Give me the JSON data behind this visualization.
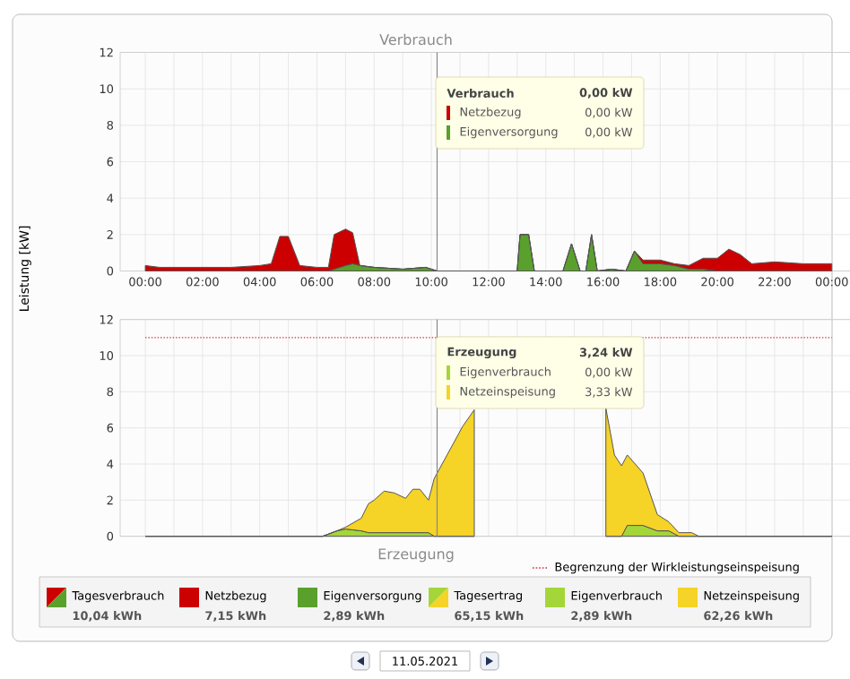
{
  "chart_data": [
    {
      "type": "area",
      "title": "Verbrauch",
      "ylabel": "Leistung [kW]",
      "stacked": true,
      "grid": true,
      "x": [
        0,
        0.5,
        1,
        2,
        3,
        4,
        4.4,
        4.7,
        5.0,
        5.4,
        6.0,
        6.4,
        6.6,
        7.0,
        7.25,
        7.5,
        8,
        9,
        9.8,
        10.2,
        13.0,
        13.1,
        13.4,
        13.6,
        14.6,
        14.9,
        15.2,
        15.4,
        15.6,
        15.8,
        16.3,
        16.8,
        17.1,
        17.4,
        18,
        18.5,
        19,
        19.5,
        20,
        20.4,
        20.8,
        21.2,
        22,
        23,
        24
      ],
      "series": [
        {
          "name": "Eigenversorgung",
          "color": "#5aa02c",
          "values": [
            0,
            0,
            0,
            0,
            0,
            0,
            0,
            0,
            0,
            0,
            0,
            0,
            0.1,
            0.3,
            0.4,
            0.3,
            0.2,
            0.1,
            0.2,
            0,
            0,
            2.0,
            2.0,
            0,
            0,
            1.5,
            0,
            0,
            2.0,
            0,
            0.1,
            0,
            1.1,
            0.4,
            0.4,
            0.3,
            0.1,
            0.1,
            0,
            0,
            0,
            0,
            0,
            0,
            0
          ]
        },
        {
          "name": "Netzbezug",
          "color": "#cc0000",
          "values": [
            0.3,
            0.2,
            0.2,
            0.2,
            0.2,
            0.3,
            0.4,
            1.9,
            1.9,
            0.3,
            0.2,
            0.2,
            1.9,
            2.0,
            1.7,
            0,
            0,
            0,
            0,
            0,
            0,
            0,
            0,
            0,
            0,
            0,
            0,
            0,
            0,
            0,
            0,
            0,
            0,
            0.2,
            0.2,
            0.1,
            0.2,
            0.6,
            0.7,
            1.2,
            0.9,
            0.4,
            0.5,
            0.4,
            0.4
          ]
        }
      ],
      "xlim": [
        -0.88,
        24.76
      ],
      "ylim": [
        0,
        12
      ],
      "xticks": [
        {
          "value": 0,
          "label": "00:00"
        },
        {
          "value": 2,
          "label": "02:00"
        },
        {
          "value": 4,
          "label": "04:00"
        },
        {
          "value": 6,
          "label": "06:00"
        },
        {
          "value": 8,
          "label": "08:00"
        },
        {
          "value": 10,
          "label": "10:00"
        },
        {
          "value": 12,
          "label": "12:00"
        },
        {
          "value": 14,
          "label": "14:00"
        },
        {
          "value": 16,
          "label": "16:00"
        },
        {
          "value": 18,
          "label": "18:00"
        },
        {
          "value": 20,
          "label": "20:00"
        },
        {
          "value": 22,
          "label": "22:00"
        },
        {
          "value": 24,
          "label": "00:00"
        }
      ],
      "yticks": [
        0,
        2,
        4,
        6,
        8,
        10,
        12
      ],
      "ref_lines": [
        {
          "axis": "x",
          "value": 10.2,
          "color": "#888888"
        }
      ],
      "legend": "top",
      "annotations": [
        "Verbrauch",
        "0,00 kW",
        "0,00 kW",
        "0,00 kW"
      ]
    },
    {
      "type": "area",
      "title": "Erzeugung",
      "stacked": true,
      "grid": true,
      "tick_labels": "y",
      "x": [
        0,
        2,
        4,
        6.2,
        6.7,
        7.0,
        7.55,
        7.8,
        8.0,
        8.35,
        8.7,
        9.1,
        9.35,
        9.6,
        9.9,
        10.1,
        11.1,
        11.5,
        12,
        15.8,
        16.1,
        16.4,
        16.65,
        16.85,
        17.4,
        17.9,
        18.3,
        18.65,
        19.1,
        19.35,
        20,
        22,
        24
      ],
      "series": [
        {
          "name": "Eigenverbrauch",
          "color": "#a4d63a",
          "values": [
            0,
            0,
            0,
            0,
            0.3,
            0.4,
            0.3,
            0.2,
            0.2,
            0.2,
            0.2,
            0.2,
            0.2,
            0.2,
            0.2,
            0,
            0,
            0,
            null,
            null,
            0,
            0,
            0,
            0.6,
            0.6,
            0.3,
            0.3,
            0,
            0,
            0,
            0,
            0,
            0
          ]
        },
        {
          "name": "Netzeinspeisung",
          "color": "#f5d327",
          "values": [
            0,
            0,
            0,
            0,
            0,
            0.1,
            0.7,
            1.6,
            1.8,
            2.3,
            2.2,
            1.9,
            2.4,
            2.4,
            1.8,
            3.2,
            6.1,
            7.0,
            null,
            null,
            7.1,
            4.5,
            3.9,
            3.9,
            2.9,
            0.9,
            0.5,
            0.2,
            0.2,
            0,
            0,
            0,
            0
          ]
        }
      ],
      "xlim": [
        -0.88,
        24.76
      ],
      "ylim": [
        0,
        12
      ],
      "xticks": [
        {
          "value": 0,
          "label": null
        },
        {
          "value": 2,
          "label": null
        },
        {
          "value": 4,
          "label": null
        },
        {
          "value": 6,
          "label": null
        },
        {
          "value": 8,
          "label": null
        },
        {
          "value": 10,
          "label": null
        },
        {
          "value": 12,
          "label": null
        },
        {
          "value": 14,
          "label": null
        },
        {
          "value": 16,
          "label": null
        },
        {
          "value": 18,
          "label": null
        },
        {
          "value": 20,
          "label": null
        },
        {
          "value": 22,
          "label": null
        },
        {
          "value": 24,
          "label": null
        }
      ],
      "yticks": [
        0,
        2,
        4,
        6,
        8,
        10,
        12
      ],
      "ref_lines": [
        {
          "axis": "x",
          "value": 10.2,
          "color": "#888888"
        },
        {
          "axis": "y",
          "value": 11,
          "label": "Begrenzung der Wirkleistungseinspeisung",
          "color": "#d0303a",
          "line_style": "dotted"
        }
      ],
      "legend": "bottom right",
      "annotations": [
        "Erzeugung",
        "3,24 kW",
        "0,00 kW",
        "3,33 kW"
      ]
    },
    {
      "type": "other",
      "categories": [
        "Tagesverbrauch",
        "Netzbezug",
        "Eigenversorgung",
        "Tagesertrag",
        "Eigenverbrauch",
        "Netzeinspeisung"
      ],
      "value_labels": [
        "10,04 kWh",
        "7,15 kWh",
        "2,89 kWh",
        "65,15 kWh",
        "2,89 kWh",
        "62,26 kWh"
      ],
      "colors": [
        null,
        "#cc0000",
        "#5aa02c",
        null,
        "#a4d63a",
        "#f5d327"
      ],
      "annotations": [
        "11.05.2021"
      ]
    }
  ]
}
